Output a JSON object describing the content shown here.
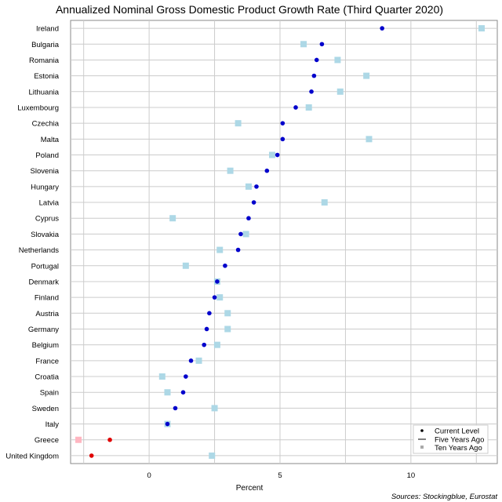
{
  "chart_data": {
    "type": "scatter",
    "title": "Annualized Nominal Gross Domestic Product Growth Rate (Third Quarter 2020)",
    "xlabel": "Percent",
    "source": "Sources: Stockingblue, Eurostat",
    "xlim": [
      -3,
      13.3
    ],
    "xticks": [
      0,
      5,
      10
    ],
    "grid": true,
    "legend_position": "bottom-right",
    "legend": [
      "Current Level",
      "Five Years Ago",
      "Ten Years Ago"
    ],
    "colors": {
      "current_positive": "#0000cc",
      "current_negative": "#e00000",
      "ten_years_positive": "#add8e6",
      "ten_years_negative": "#ffb6c1",
      "grid": "#cccccc"
    },
    "categories": [
      "Ireland",
      "Bulgaria",
      "Romania",
      "Estonia",
      "Lithuania",
      "Luxembourg",
      "Czechia",
      "Malta",
      "Poland",
      "Slovenia",
      "Hungary",
      "Latvia",
      "Cyprus",
      "Slovakia",
      "Netherlands",
      "Portugal",
      "Denmark",
      "Finland",
      "Austria",
      "Germany",
      "Belgium",
      "France",
      "Croatia",
      "Spain",
      "Sweden",
      "Italy",
      "Greece",
      "United Kingdom"
    ],
    "series": [
      {
        "name": "Current Level",
        "values": [
          8.9,
          6.6,
          6.4,
          6.3,
          6.2,
          5.6,
          5.1,
          5.1,
          4.9,
          4.5,
          4.1,
          4.0,
          3.8,
          3.5,
          3.4,
          2.9,
          2.6,
          2.5,
          2.3,
          2.2,
          2.1,
          1.6,
          1.4,
          1.3,
          1.0,
          0.7,
          -1.5,
          -2.2
        ]
      },
      {
        "name": "Ten Years Ago",
        "values": [
          12.7,
          5.9,
          7.2,
          8.3,
          7.3,
          6.1,
          3.4,
          8.4,
          4.7,
          3.1,
          3.8,
          6.7,
          0.9,
          3.7,
          2.7,
          1.4,
          2.6,
          2.7,
          3.0,
          3.0,
          2.6,
          1.9,
          0.5,
          0.7,
          2.5,
          0.7,
          -2.7,
          2.4
        ]
      }
    ]
  }
}
